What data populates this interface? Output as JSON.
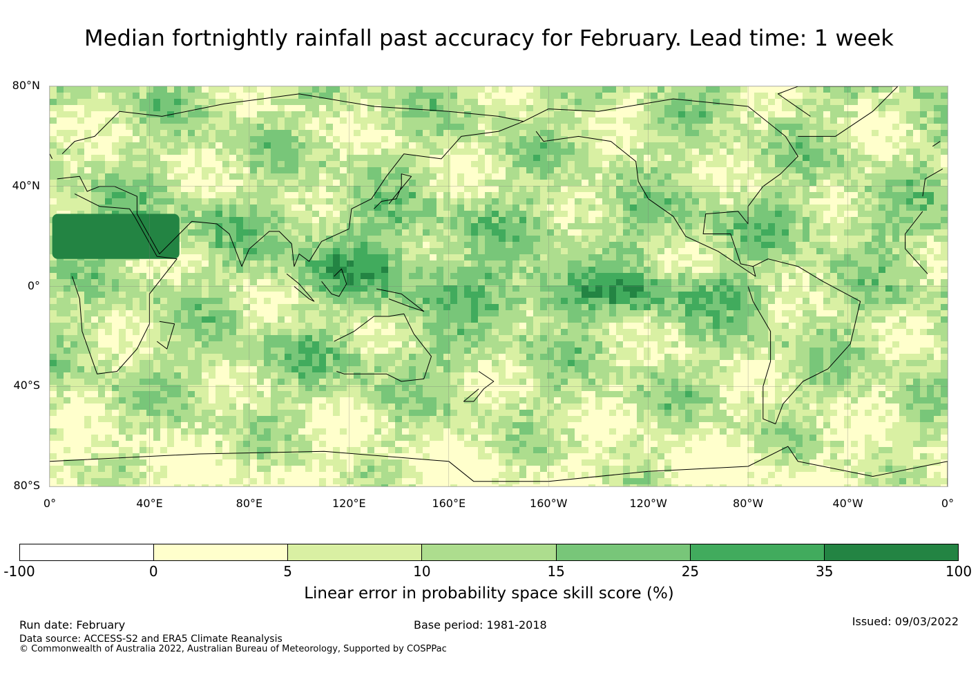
{
  "title": "Median fortnightly rainfall past accuracy for February. Lead time: 1 week",
  "map": {
    "projection": "equirectangular",
    "lon_range": [
      0,
      360
    ],
    "lat_range": [
      -80,
      80
    ],
    "lat_labels": [
      "80°N",
      "40°N",
      "0°",
      "40°S",
      "80°S"
    ],
    "lat_values": [
      80,
      40,
      0,
      -40,
      -80
    ],
    "lon_labels": [
      "0°",
      "40°E",
      "80°E",
      "120°E",
      "160°E",
      "160°W",
      "120°W",
      "80°W",
      "40°W",
      "0°"
    ],
    "lon_values": [
      0,
      40,
      80,
      120,
      160,
      200,
      240,
      280,
      320,
      360
    ],
    "gridlines": true,
    "coastline_color": "#000000"
  },
  "colorbar": {
    "bounds": [
      "-100",
      "0",
      "5",
      "10",
      "15",
      "25",
      "35",
      "100"
    ],
    "colors": [
      "#ffffff",
      "#ffffcc",
      "#d9f0a3",
      "#addd8e",
      "#78c679",
      "#41ab5d",
      "#238443"
    ],
    "label": "Linear error in probability space skill score (%)"
  },
  "footer": {
    "run_date": "Run date: February",
    "base_period": "Base period: 1981-2018",
    "issued": "Issued: 09/03/2022",
    "data_source": "Data source: ACCESS-S2 and ERA5 Climate Reanalysis",
    "copyright": "© Commonwealth of Australia 2022, Australian Bureau of Meteorology, Supported by COSPPac"
  }
}
